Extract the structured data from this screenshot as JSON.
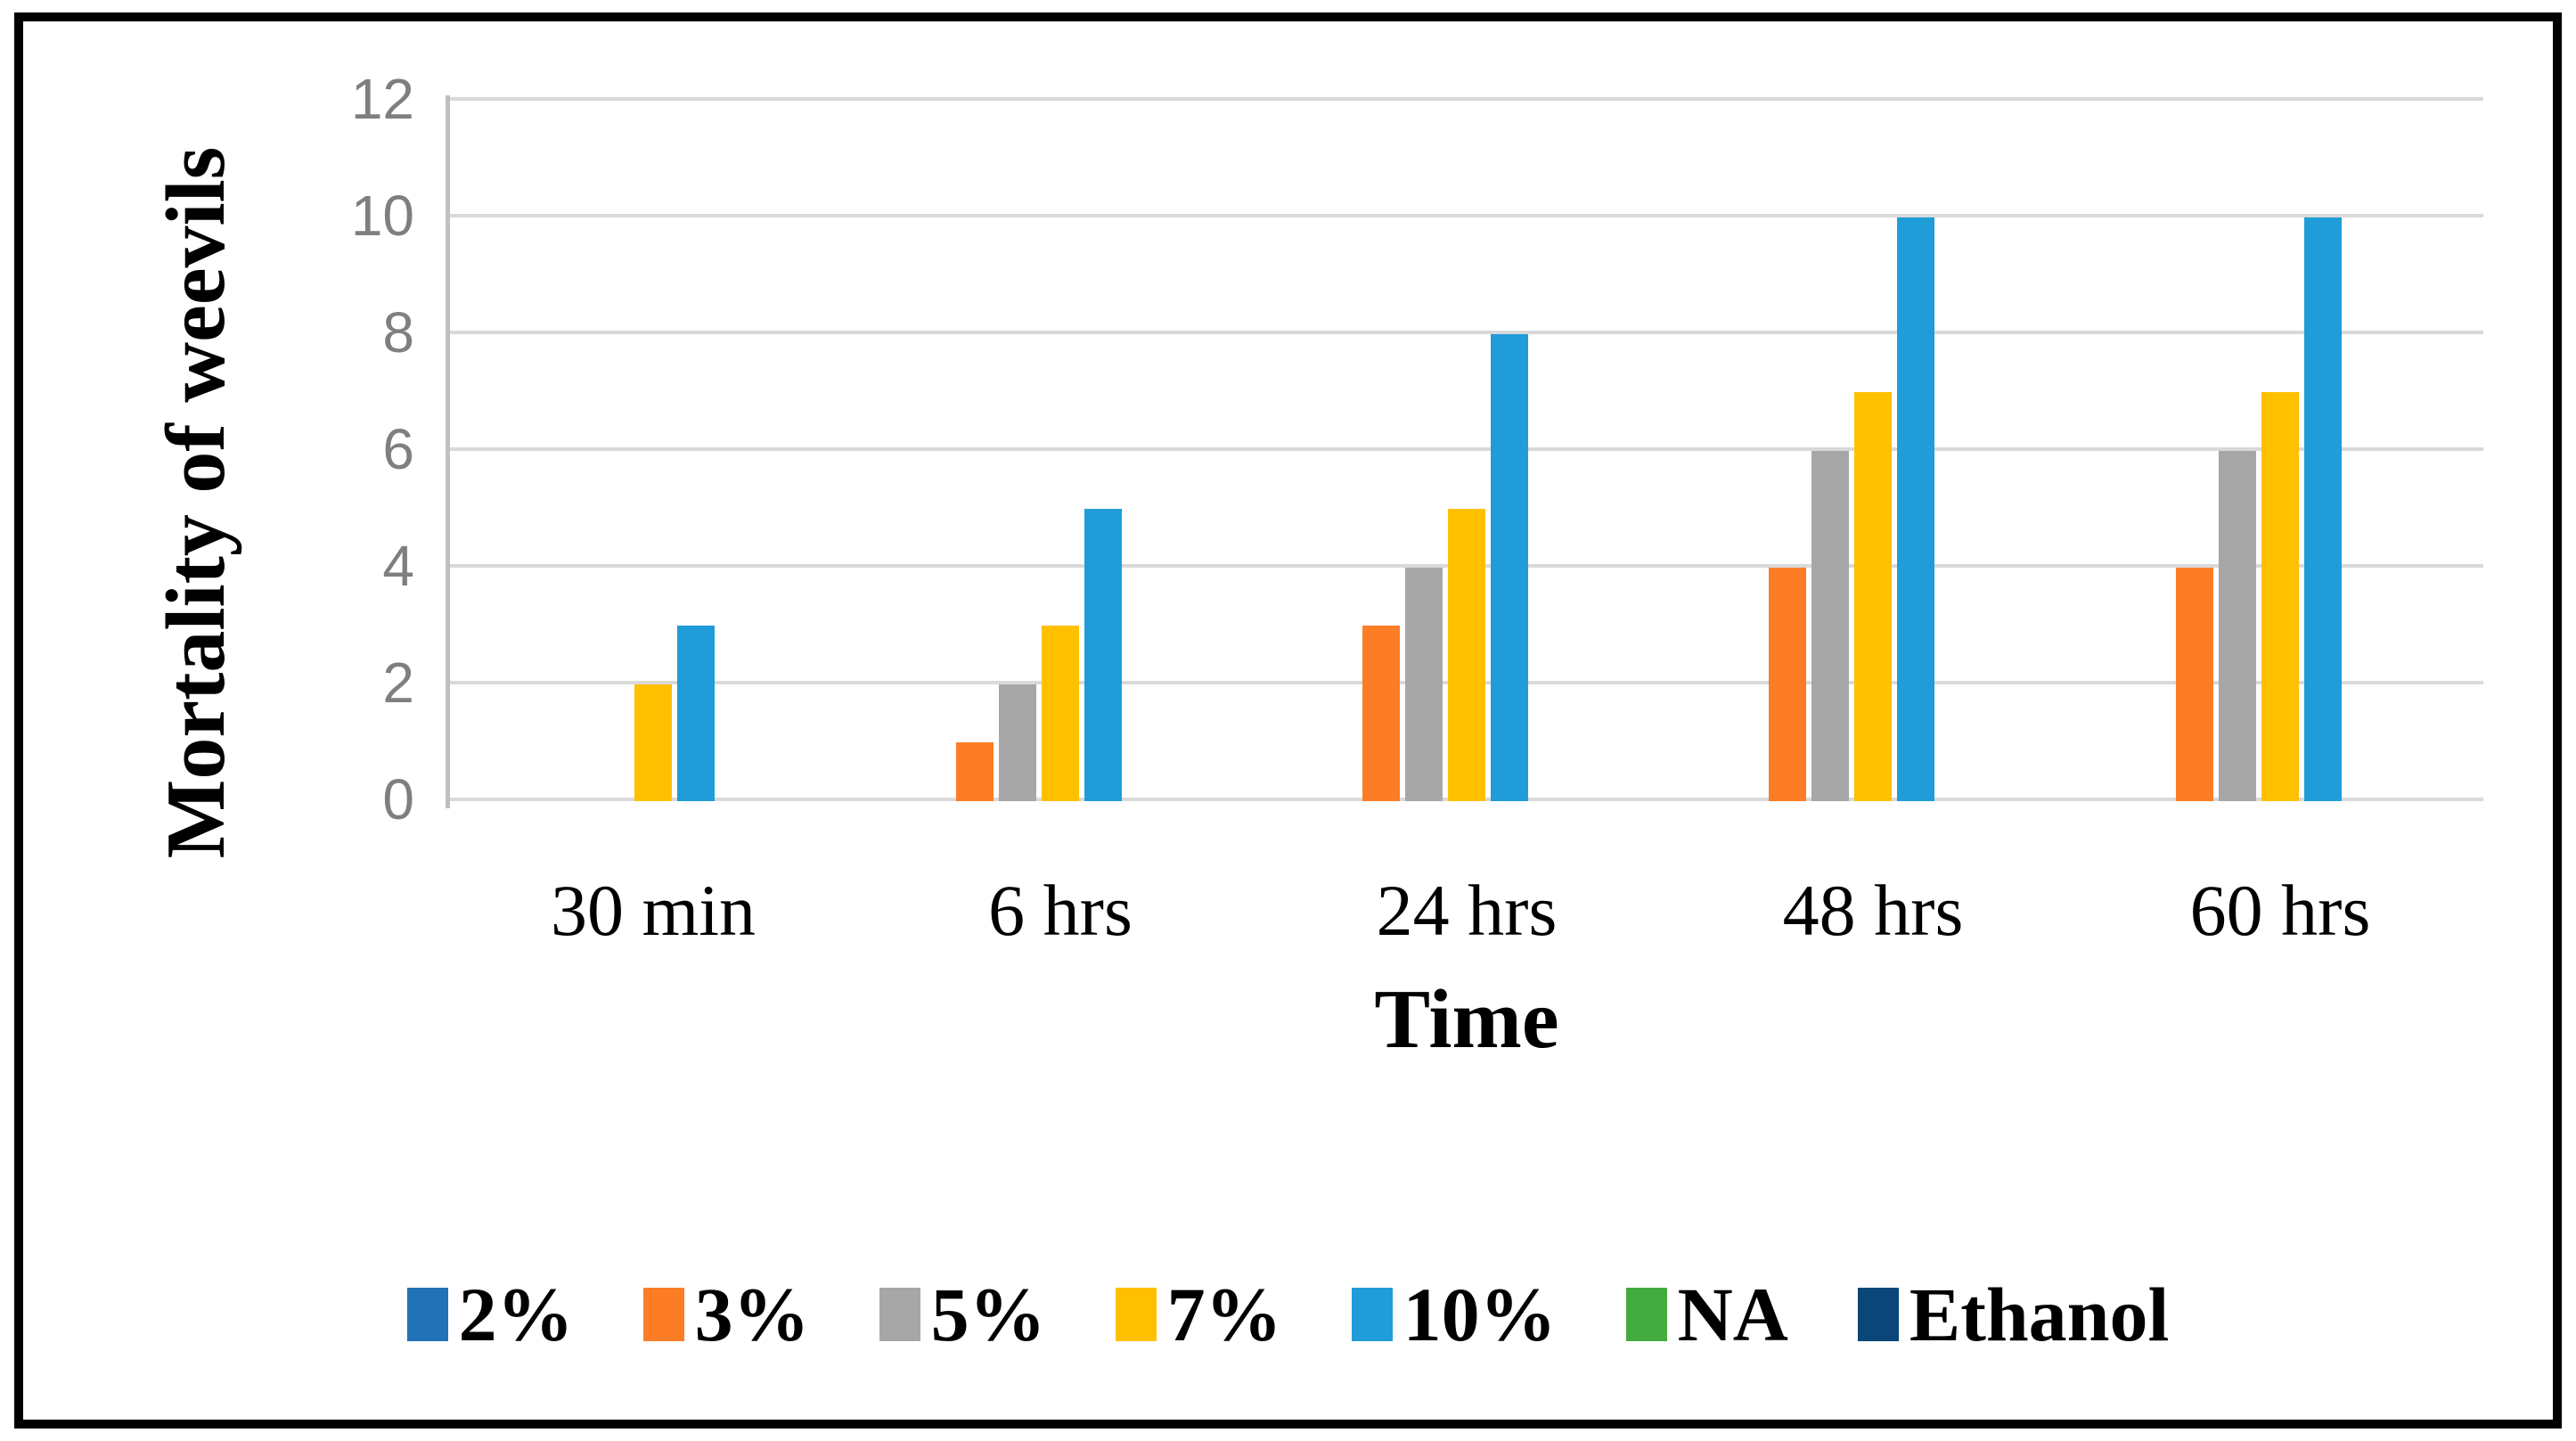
{
  "chart_data": {
    "type": "bar",
    "title": "",
    "xlabel": "Time",
    "ylabel": "Mortality of weevils",
    "categories": [
      "30 min",
      "6 hrs",
      "24 hrs",
      "48 hrs",
      "60 hrs"
    ],
    "series": [
      {
        "name": "2%",
        "color": "#2272B8",
        "values": [
          0,
          0,
          0,
          0,
          0
        ]
      },
      {
        "name": "3%",
        "color": "#FC7D26",
        "values": [
          0,
          1,
          3,
          4,
          4
        ]
      },
      {
        "name": "5%",
        "color": "#A7A7A7",
        "values": [
          0,
          2,
          4,
          6,
          6
        ]
      },
      {
        "name": "7%",
        "color": "#FFC000",
        "values": [
          2,
          3,
          5,
          7,
          7
        ]
      },
      {
        "name": "10%",
        "color": "#209CD9",
        "values": [
          3,
          5,
          8,
          10,
          10
        ]
      },
      {
        "name": "NA",
        "color": "#43AB3F",
        "values": [
          0,
          0,
          0,
          0,
          0
        ]
      },
      {
        "name": "Ethanol",
        "color": "#0A4678",
        "values": [
          0,
          0,
          0,
          0,
          0
        ]
      }
    ],
    "ylim": [
      0,
      12
    ],
    "yticks": [
      0,
      2,
      4,
      6,
      8,
      10,
      12
    ],
    "grid": true,
    "legend_position": "bottom",
    "colors": {
      "gridline": "#D9D9D9",
      "axis_line": "#BFBFBF",
      "tick_label": "#7F7F7F",
      "text": "#000000",
      "border": "#000000",
      "background": "#FFFFFF"
    }
  }
}
